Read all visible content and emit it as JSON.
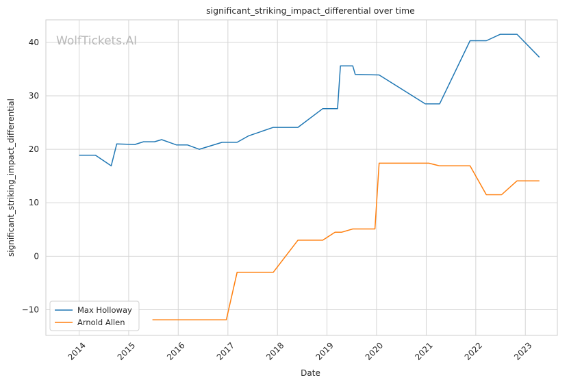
{
  "chart_data": {
    "type": "line",
    "title": "significant_striking_impact_differential over time",
    "xlabel": "Date",
    "ylabel": "significant_striking_impact_differential",
    "watermark": "WolfTickets.AI",
    "x_ticks": [
      "2014",
      "2015",
      "2016",
      "2017",
      "2018",
      "2019",
      "2020",
      "2021",
      "2022",
      "2023"
    ],
    "y_ticks": [
      "−10",
      "0",
      "10",
      "20",
      "30",
      "40"
    ],
    "xlim": [
      "2013-05-01",
      "2023-08-25"
    ],
    "ylim": [
      -14.8,
      44.2
    ],
    "grid": true,
    "legend_position": "lower-left",
    "series": [
      {
        "name": "Max Holloway",
        "color": "#1f77b4",
        "points": [
          [
            "2014-01-01",
            18.9
          ],
          [
            "2014-05-01",
            18.9
          ],
          [
            "2014-08-25",
            16.9
          ],
          [
            "2014-10-05",
            21.0
          ],
          [
            "2015-02-15",
            20.9
          ],
          [
            "2015-04-20",
            21.4
          ],
          [
            "2015-07-10",
            21.4
          ],
          [
            "2015-09-01",
            21.8
          ],
          [
            "2015-12-20",
            20.8
          ],
          [
            "2016-03-10",
            20.8
          ],
          [
            "2016-06-04",
            20.0
          ],
          [
            "2016-11-20",
            21.3
          ],
          [
            "2017-03-10",
            21.3
          ],
          [
            "2017-06-01",
            22.5
          ],
          [
            "2017-12-01",
            24.1
          ],
          [
            "2018-06-01",
            24.1
          ],
          [
            "2018-12-01",
            27.6
          ],
          [
            "2019-03-20",
            27.6
          ],
          [
            "2019-04-10",
            35.6
          ],
          [
            "2019-07-10",
            35.6
          ],
          [
            "2019-07-28",
            34.0
          ],
          [
            "2020-01-20",
            33.9
          ],
          [
            "2020-12-25",
            28.5
          ],
          [
            "2021-04-10",
            28.5
          ],
          [
            "2021-11-20",
            40.3
          ],
          [
            "2022-03-20",
            40.3
          ],
          [
            "2022-07-01",
            41.5
          ],
          [
            "2022-11-01",
            41.5
          ],
          [
            "2023-04-15",
            37.2
          ]
        ]
      },
      {
        "name": "Arnold Allen",
        "color": "#ff7f0e",
        "points": [
          [
            "2015-06-25",
            -11.9
          ],
          [
            "2016-12-20",
            -11.9
          ],
          [
            "2017-03-10",
            -3.0
          ],
          [
            "2017-12-01",
            -3.0
          ],
          [
            "2018-06-01",
            3.0
          ],
          [
            "2018-12-01",
            3.0
          ],
          [
            "2019-03-01",
            4.5
          ],
          [
            "2019-04-20",
            4.5
          ],
          [
            "2019-07-10",
            5.1
          ],
          [
            "2019-12-20",
            5.1
          ],
          [
            "2020-01-20",
            17.4
          ],
          [
            "2021-01-20",
            17.4
          ],
          [
            "2021-04-10",
            16.9
          ],
          [
            "2021-11-20",
            16.9
          ],
          [
            "2022-03-20",
            11.5
          ],
          [
            "2022-07-10",
            11.5
          ],
          [
            "2022-11-01",
            14.1
          ],
          [
            "2023-04-15",
            14.1
          ]
        ]
      }
    ]
  }
}
